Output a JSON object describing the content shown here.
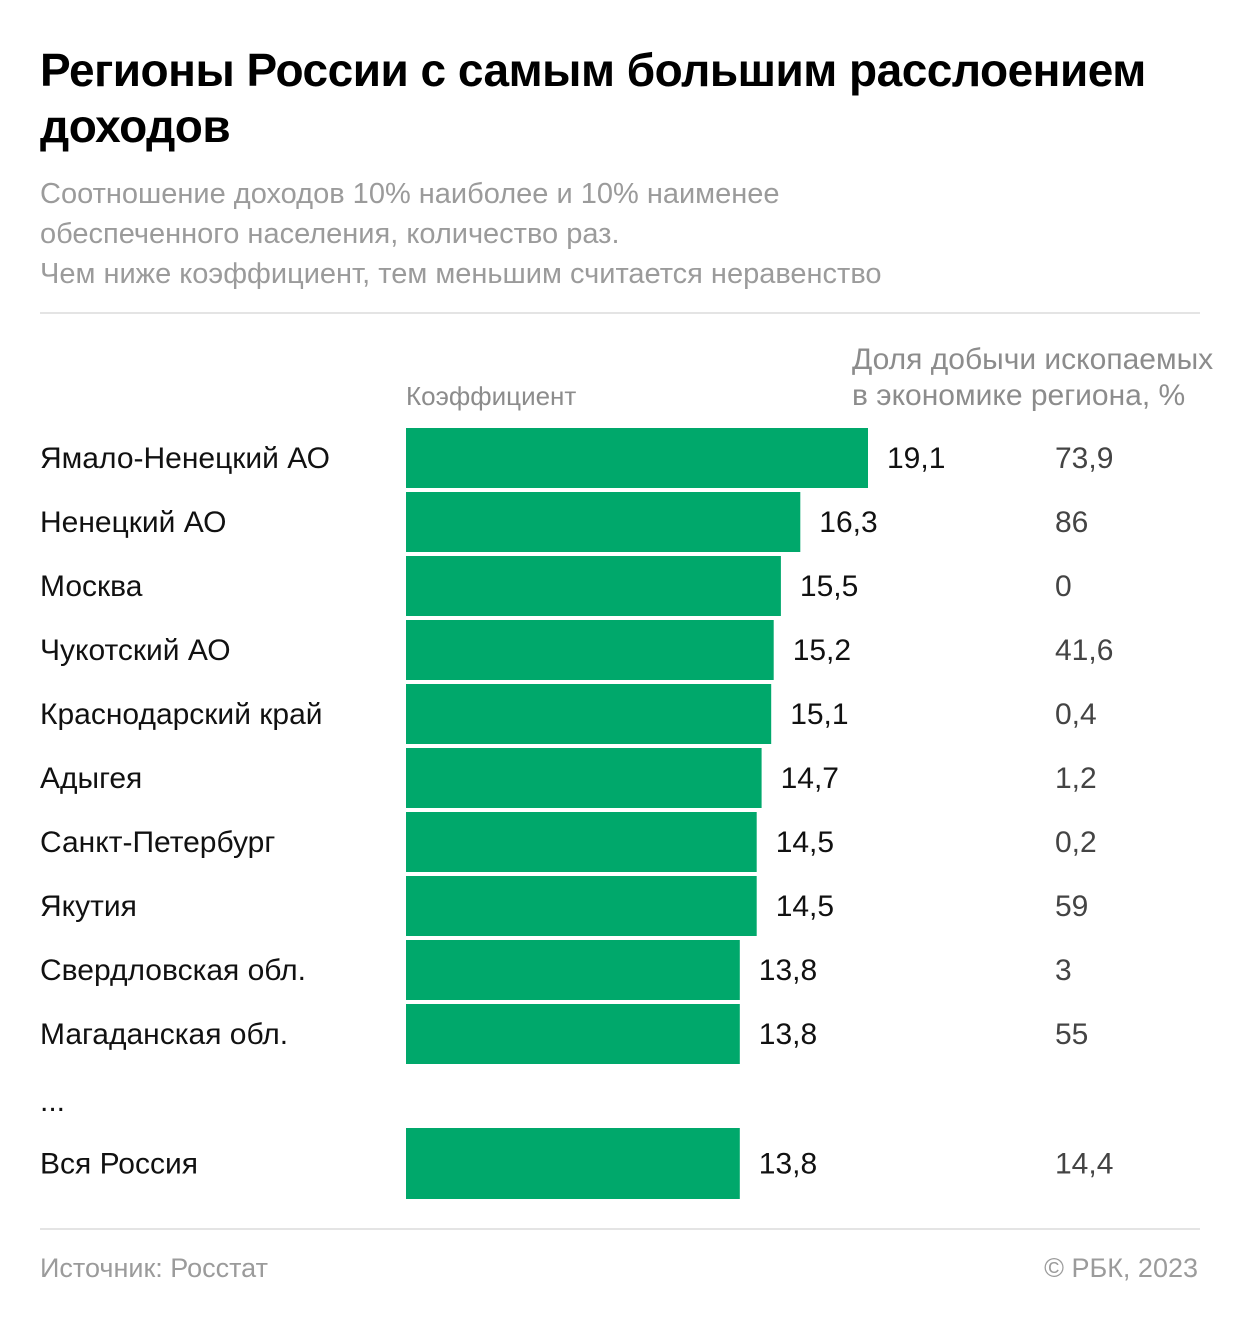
{
  "header": {
    "title": "Регионы России с самым большим расслоением доходов",
    "subtitle_lines": [
      "Соотношение доходов 10% наиболее и 10% наименее",
      "обеспеченного населения, количество раз.",
      "Чем ниже коэффициент, тем меньшим считается неравенство"
    ]
  },
  "columns": {
    "coefficient": "Коэффициент",
    "share_lines": [
      "Доля добычи ископаемых",
      "в экономике региона, %"
    ]
  },
  "ellipsis": "...",
  "footer": {
    "source": "Источник: Росстат",
    "copyright": "© РБК, 2023"
  },
  "colors": {
    "bar": "#00a86b"
  },
  "chart_data": {
    "type": "bar",
    "orientation": "horizontal",
    "categories": [
      "Ямало-Ненецкий АО",
      "Ненецкий АО",
      "Москва",
      "Чукотский АО",
      "Краснодарский край",
      "Адыгея",
      "Санкт-Петербург",
      "Якутия",
      "Свердловская обл.",
      "Магаданская обл.",
      "Вся Россия"
    ],
    "values": [
      19.1,
      16.3,
      15.5,
      15.2,
      15.1,
      14.7,
      14.5,
      14.5,
      13.8,
      13.8,
      13.8
    ],
    "value_labels": [
      "19,1",
      "16,3",
      "15,5",
      "15,2",
      "15,1",
      "14,7",
      "14,5",
      "14,5",
      "13,8",
      "13,8",
      "13,8"
    ],
    "share_labels": [
      "73,9",
      "86",
      "0",
      "41,6",
      "0,4",
      "1,2",
      "0,2",
      "59",
      "3",
      "55",
      "14,4"
    ],
    "xlim": [
      0,
      19.1
    ]
  }
}
